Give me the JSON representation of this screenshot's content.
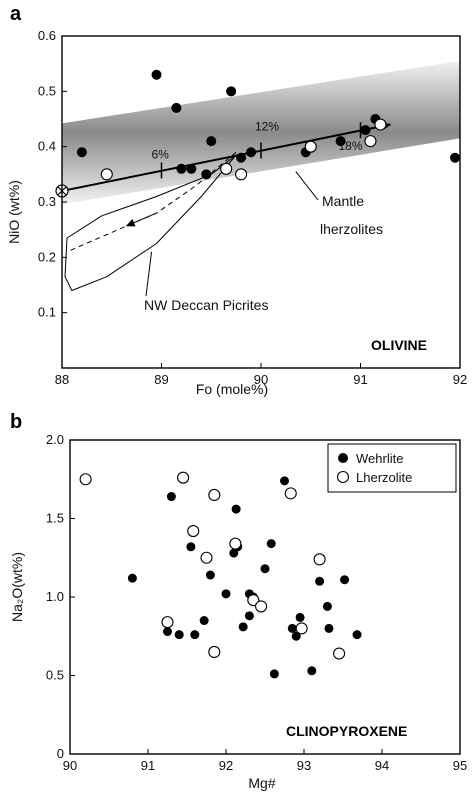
{
  "chart_data": [
    {
      "type": "scatter",
      "panel_label": "a",
      "xlabel": "Fo (mole%)",
      "ylabel": "NiO (wt%)",
      "xlim": [
        88,
        92
      ],
      "ylim": [
        0,
        0.6
      ],
      "x_ticks": [
        "88",
        "89",
        "90",
        "91",
        "92"
      ],
      "y_ticks": [
        "0.1",
        "0.2",
        "0.3",
        "0.4",
        "0.5",
        "0.6"
      ],
      "mineral_label": "OLIVINE",
      "series": [
        {
          "marker": "filled-circle",
          "points": [
            [
              88.2,
              0.39
            ],
            [
              88.95,
              0.53
            ],
            [
              89.15,
              0.47
            ],
            [
              89.2,
              0.36
            ],
            [
              89.3,
              0.36
            ],
            [
              89.45,
              0.35
            ],
            [
              89.5,
              0.41
            ],
            [
              89.7,
              0.5
            ],
            [
              89.8,
              0.38
            ],
            [
              89.9,
              0.39
            ],
            [
              90.45,
              0.39
            ],
            [
              90.8,
              0.41
            ],
            [
              91.05,
              0.43
            ],
            [
              91.15,
              0.45
            ],
            [
              91.95,
              0.38
            ]
          ]
        },
        {
          "marker": "open-circle",
          "points": [
            [
              88.45,
              0.35
            ],
            [
              89.65,
              0.36
            ],
            [
              89.8,
              0.35
            ],
            [
              90.5,
              0.4
            ],
            [
              91.1,
              0.41
            ],
            [
              91.2,
              0.44
            ]
          ]
        }
      ],
      "mantle_trend": {
        "start": [
          88.0,
          0.32
        ],
        "end": [
          91.3,
          0.44
        ],
        "ticks": [
          {
            "x": 89.0,
            "y": 0.357,
            "label": "6%"
          },
          {
            "x": 90.0,
            "y": 0.393,
            "label": "12%"
          },
          {
            "x": 91.0,
            "y": 0.43,
            "label": "18%"
          }
        ],
        "start_marker": "crossed-circle"
      },
      "mantle_field_label": [
        "Mantle",
        "lherzolites"
      ],
      "picrite_field_label": "NW Deccan Picrites",
      "colors": {
        "band": "#8c8c8c",
        "filled": "#000000",
        "open_fill": "#ffffff"
      }
    },
    {
      "type": "scatter",
      "panel_label": "b",
      "xlabel": "Mg#",
      "ylabel": "Na₂O(wt%)",
      "xlim": [
        90,
        95
      ],
      "ylim": [
        0,
        2.0
      ],
      "x_ticks": [
        "90",
        "91",
        "92",
        "93",
        "94",
        "95"
      ],
      "y_ticks": [
        "0",
        "0.5",
        "1.0",
        "1.5",
        "2.0"
      ],
      "mineral_label": "CLINOPYROXENE",
      "legend_position": "top-right",
      "series": [
        {
          "name": "Wehrlite",
          "marker": "filled-circle",
          "points": [
            [
              90.8,
              1.12
            ],
            [
              91.25,
              0.78
            ],
            [
              91.3,
              1.64
            ],
            [
              91.4,
              0.76
            ],
            [
              91.55,
              1.32
            ],
            [
              91.6,
              0.76
            ],
            [
              91.72,
              0.85
            ],
            [
              91.8,
              1.14
            ],
            [
              92.0,
              1.02
            ],
            [
              92.1,
              1.28
            ],
            [
              92.13,
              1.56
            ],
            [
              92.15,
              1.32
            ],
            [
              92.22,
              0.81
            ],
            [
              92.3,
              1.02
            ],
            [
              92.3,
              0.88
            ],
            [
              92.35,
              1.0
            ],
            [
              92.5,
              1.18
            ],
            [
              92.58,
              1.34
            ],
            [
              92.62,
              0.51
            ],
            [
              92.85,
              0.8
            ],
            [
              92.9,
              0.75
            ],
            [
              92.95,
              0.87
            ],
            [
              93.1,
              0.53
            ],
            [
              93.2,
              1.1
            ],
            [
              93.3,
              0.94
            ],
            [
              93.32,
              0.8
            ],
            [
              93.52,
              1.11
            ],
            [
              93.68,
              0.76
            ],
            [
              92.75,
              1.74
            ]
          ]
        },
        {
          "name": "Lherzolite",
          "marker": "open-circle",
          "points": [
            [
              90.2,
              1.75
            ],
            [
              91.25,
              0.84
            ],
            [
              91.45,
              1.76
            ],
            [
              91.58,
              1.42
            ],
            [
              91.75,
              1.25
            ],
            [
              91.85,
              0.65
            ],
            [
              91.85,
              1.65
            ],
            [
              92.12,
              1.34
            ],
            [
              92.35,
              0.98
            ],
            [
              92.45,
              0.94
            ],
            [
              92.83,
              1.66
            ],
            [
              92.97,
              0.8
            ],
            [
              93.2,
              1.24
            ],
            [
              93.45,
              0.64
            ]
          ]
        }
      ]
    }
  ]
}
